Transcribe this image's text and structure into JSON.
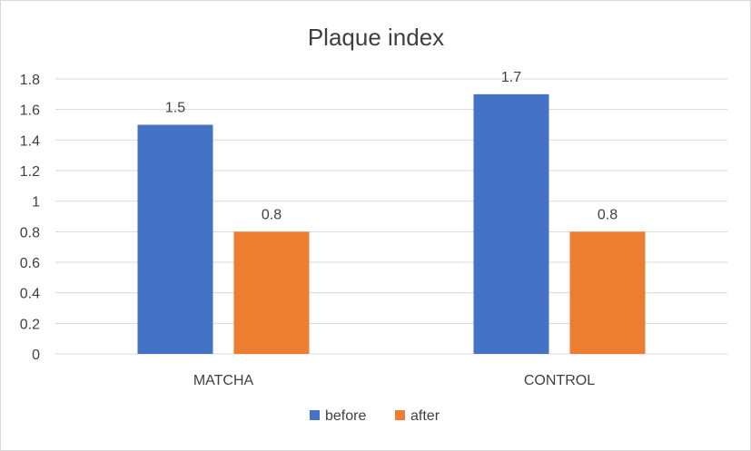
{
  "chart_data": {
    "type": "bar",
    "title": "Plaque index",
    "categories": [
      "MATCHA",
      "CONTROL"
    ],
    "series": [
      {
        "name": "before",
        "values": [
          1.5,
          1.7
        ],
        "color": "#4472C4"
      },
      {
        "name": "after",
        "values": [
          0.8,
          0.8
        ],
        "color": "#ED7D31"
      }
    ],
    "data_labels": [
      [
        "1.5",
        "1.7"
      ],
      [
        "0.8",
        "0.8"
      ]
    ],
    "ylim": [
      0,
      1.8
    ],
    "y_ticks": [
      "0",
      "0.2",
      "0.4",
      "0.6",
      "0.8",
      "1",
      "1.2",
      "1.4",
      "1.6",
      "1.8"
    ],
    "y_tick_values": [
      0,
      0.2,
      0.4,
      0.6,
      0.8,
      1,
      1.2,
      1.4,
      1.6,
      1.8
    ],
    "grid": true,
    "legend_position": "bottom"
  }
}
